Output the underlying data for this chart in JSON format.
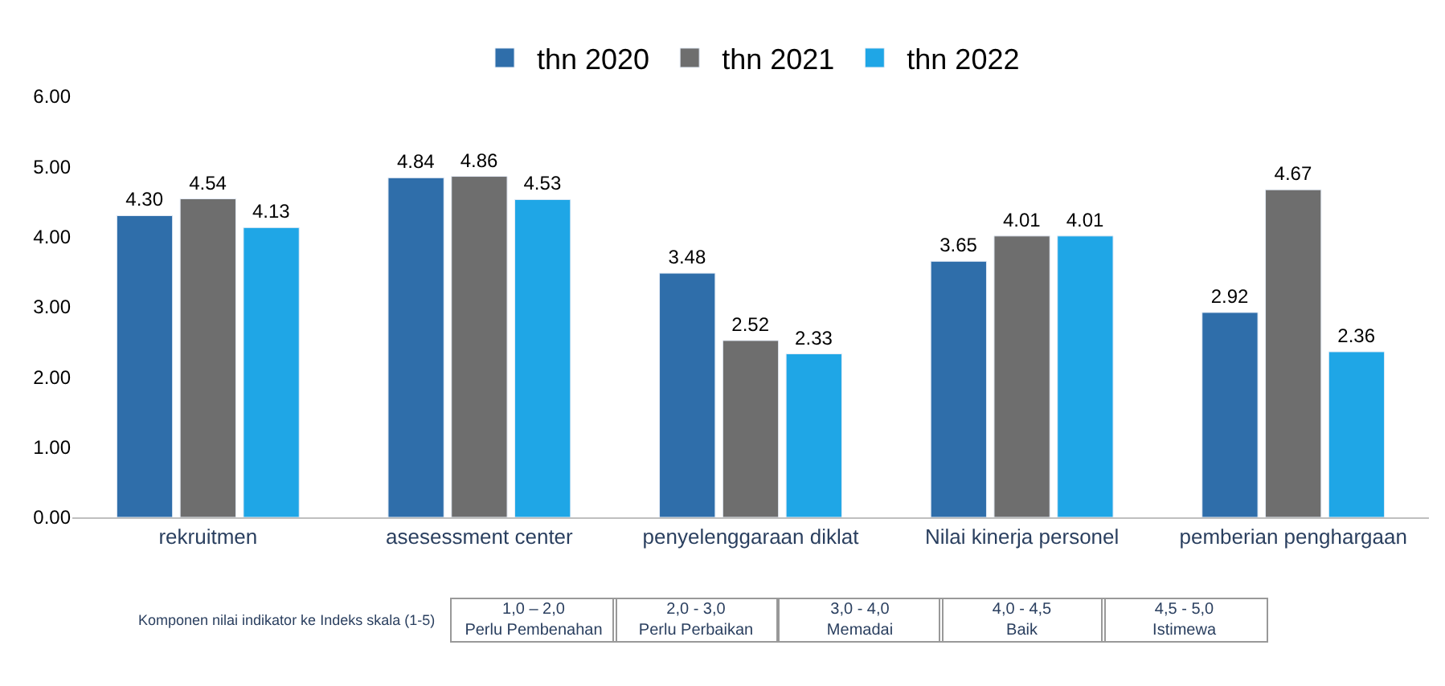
{
  "chart_data": {
    "type": "bar",
    "categories": [
      "rekruitmen",
      "asesessment center",
      "penyelenggaraan diklat",
      "Nilai kinerja personel",
      "pemberian penghargaan"
    ],
    "series": [
      {
        "name": "thn 2020",
        "color": "#2f6eaa",
        "values": [
          4.3,
          4.84,
          3.48,
          3.65,
          2.92
        ],
        "value_labels": [
          "4.30",
          "4.84",
          "3.48",
          "3.65",
          "2.92"
        ]
      },
      {
        "name": "thn 2021",
        "color": "#6e6e6e",
        "values": [
          4.54,
          4.86,
          2.52,
          4.01,
          4.67
        ],
        "value_labels": [
          "4.54",
          "4.86",
          "2.52",
          "4.01",
          "4.67"
        ]
      },
      {
        "name": "thn 2022",
        "color": "#1fa6e6",
        "values": [
          4.13,
          4.53,
          2.33,
          4.01,
          2.36
        ],
        "value_labels": [
          "4.13",
          "4.53",
          "2.33",
          "4.01",
          "2.36"
        ]
      }
    ],
    "ylim": [
      0,
      6
    ],
    "yticks": [
      {
        "value": 0,
        "label": "0.00"
      },
      {
        "value": 1,
        "label": "1.00"
      },
      {
        "value": 2,
        "label": "2.00"
      },
      {
        "value": 3,
        "label": "3.00"
      },
      {
        "value": 4,
        "label": "4.00"
      },
      {
        "value": 5,
        "label": "5.00"
      },
      {
        "value": 6,
        "label": "6.00"
      }
    ],
    "legend": "top",
    "annotations": [
      "Komponen nilai indikator ke Indeks skala (1-5)",
      "1,0 – 2,0\nPerlu Pembenahan",
      "2,0 - 3,0\nPerlu Perbaikan",
      "3,0 - 4,0\nMemadai",
      "4,0 - 4,5\nBaik",
      "4,5 - 5,0\nIstimewa"
    ]
  }
}
